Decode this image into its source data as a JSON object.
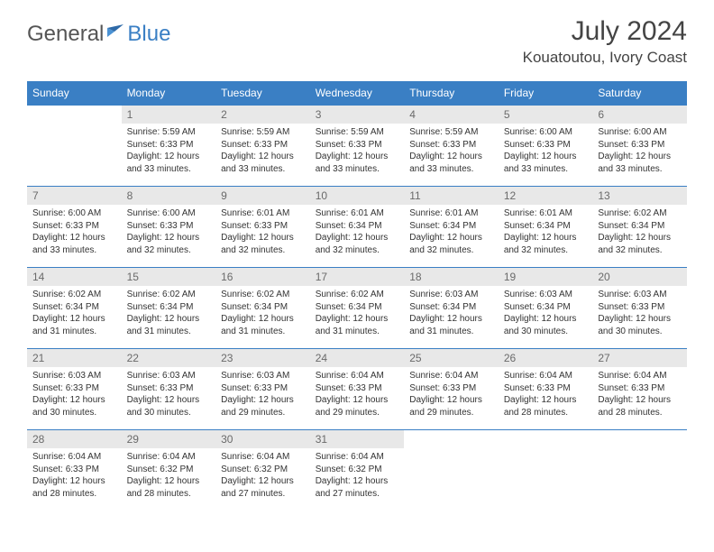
{
  "logo": {
    "word1": "General",
    "word2": "Blue"
  },
  "title": {
    "month": "July 2024",
    "location": "Kouatoutou, Ivory Coast"
  },
  "styling": {
    "header_bg": "#3a7fc4",
    "header_text": "#ffffff",
    "daynum_bg": "#e8e8e8",
    "daynum_text": "#6a6a6a",
    "body_text": "#333333",
    "row_border": "#3a7fc4",
    "page_bg": "#ffffff",
    "title_fontsize": 30,
    "location_fontsize": 17,
    "header_fontsize": 12,
    "cell_fontsize": 10
  },
  "weekdays": [
    "Sunday",
    "Monday",
    "Tuesday",
    "Wednesday",
    "Thursday",
    "Friday",
    "Saturday"
  ],
  "weeks": [
    [
      null,
      {
        "n": "1",
        "sr": "5:59 AM",
        "ss": "6:33 PM",
        "dl": "12 hours and 33 minutes."
      },
      {
        "n": "2",
        "sr": "5:59 AM",
        "ss": "6:33 PM",
        "dl": "12 hours and 33 minutes."
      },
      {
        "n": "3",
        "sr": "5:59 AM",
        "ss": "6:33 PM",
        "dl": "12 hours and 33 minutes."
      },
      {
        "n": "4",
        "sr": "5:59 AM",
        "ss": "6:33 PM",
        "dl": "12 hours and 33 minutes."
      },
      {
        "n": "5",
        "sr": "6:00 AM",
        "ss": "6:33 PM",
        "dl": "12 hours and 33 minutes."
      },
      {
        "n": "6",
        "sr": "6:00 AM",
        "ss": "6:33 PM",
        "dl": "12 hours and 33 minutes."
      }
    ],
    [
      {
        "n": "7",
        "sr": "6:00 AM",
        "ss": "6:33 PM",
        "dl": "12 hours and 33 minutes."
      },
      {
        "n": "8",
        "sr": "6:00 AM",
        "ss": "6:33 PM",
        "dl": "12 hours and 32 minutes."
      },
      {
        "n": "9",
        "sr": "6:01 AM",
        "ss": "6:33 PM",
        "dl": "12 hours and 32 minutes."
      },
      {
        "n": "10",
        "sr": "6:01 AM",
        "ss": "6:34 PM",
        "dl": "12 hours and 32 minutes."
      },
      {
        "n": "11",
        "sr": "6:01 AM",
        "ss": "6:34 PM",
        "dl": "12 hours and 32 minutes."
      },
      {
        "n": "12",
        "sr": "6:01 AM",
        "ss": "6:34 PM",
        "dl": "12 hours and 32 minutes."
      },
      {
        "n": "13",
        "sr": "6:02 AM",
        "ss": "6:34 PM",
        "dl": "12 hours and 32 minutes."
      }
    ],
    [
      {
        "n": "14",
        "sr": "6:02 AM",
        "ss": "6:34 PM",
        "dl": "12 hours and 31 minutes."
      },
      {
        "n": "15",
        "sr": "6:02 AM",
        "ss": "6:34 PM",
        "dl": "12 hours and 31 minutes."
      },
      {
        "n": "16",
        "sr": "6:02 AM",
        "ss": "6:34 PM",
        "dl": "12 hours and 31 minutes."
      },
      {
        "n": "17",
        "sr": "6:02 AM",
        "ss": "6:34 PM",
        "dl": "12 hours and 31 minutes."
      },
      {
        "n": "18",
        "sr": "6:03 AM",
        "ss": "6:34 PM",
        "dl": "12 hours and 31 minutes."
      },
      {
        "n": "19",
        "sr": "6:03 AM",
        "ss": "6:34 PM",
        "dl": "12 hours and 30 minutes."
      },
      {
        "n": "20",
        "sr": "6:03 AM",
        "ss": "6:33 PM",
        "dl": "12 hours and 30 minutes."
      }
    ],
    [
      {
        "n": "21",
        "sr": "6:03 AM",
        "ss": "6:33 PM",
        "dl": "12 hours and 30 minutes."
      },
      {
        "n": "22",
        "sr": "6:03 AM",
        "ss": "6:33 PM",
        "dl": "12 hours and 30 minutes."
      },
      {
        "n": "23",
        "sr": "6:03 AM",
        "ss": "6:33 PM",
        "dl": "12 hours and 29 minutes."
      },
      {
        "n": "24",
        "sr": "6:04 AM",
        "ss": "6:33 PM",
        "dl": "12 hours and 29 minutes."
      },
      {
        "n": "25",
        "sr": "6:04 AM",
        "ss": "6:33 PM",
        "dl": "12 hours and 29 minutes."
      },
      {
        "n": "26",
        "sr": "6:04 AM",
        "ss": "6:33 PM",
        "dl": "12 hours and 28 minutes."
      },
      {
        "n": "27",
        "sr": "6:04 AM",
        "ss": "6:33 PM",
        "dl": "12 hours and 28 minutes."
      }
    ],
    [
      {
        "n": "28",
        "sr": "6:04 AM",
        "ss": "6:33 PM",
        "dl": "12 hours and 28 minutes."
      },
      {
        "n": "29",
        "sr": "6:04 AM",
        "ss": "6:32 PM",
        "dl": "12 hours and 28 minutes."
      },
      {
        "n": "30",
        "sr": "6:04 AM",
        "ss": "6:32 PM",
        "dl": "12 hours and 27 minutes."
      },
      {
        "n": "31",
        "sr": "6:04 AM",
        "ss": "6:32 PM",
        "dl": "12 hours and 27 minutes."
      },
      null,
      null,
      null
    ]
  ],
  "labels": {
    "sunrise": "Sunrise:",
    "sunset": "Sunset:",
    "daylight": "Daylight:"
  }
}
